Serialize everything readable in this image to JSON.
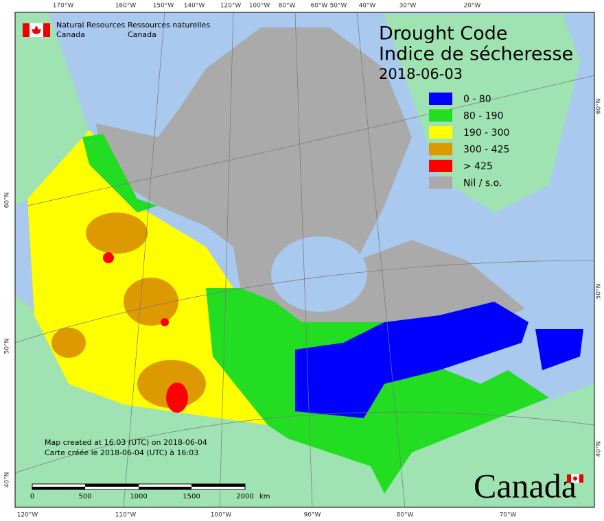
{
  "header": {
    "nrcan_en": [
      "Natural Resources",
      "Canada"
    ],
    "nrcan_fr": [
      "Ressources naturelles",
      "Canada"
    ]
  },
  "title": {
    "line1": "Drought Code",
    "line2": "Indice de sécheresse",
    "date": "2018-06-03"
  },
  "legend": [
    {
      "label": "0 - 80",
      "color": "#0000ff"
    },
    {
      "label": "80 - 190",
      "color": "#22dd22"
    },
    {
      "label": "190 - 300",
      "color": "#ffff00"
    },
    {
      "label": "300 - 425",
      "color": "#dd9900"
    },
    {
      "label": "> 425",
      "color": "#ff0000"
    },
    {
      "label": "Nil / s.o.",
      "color": "#aaaaaa"
    }
  ],
  "grid_labels": {
    "top": [
      "170°W",
      "160°W",
      "150°W",
      "140°W",
      "120°W",
      "100°W",
      "80°W",
      "60°W",
      "50°W",
      "40°W",
      "30°W",
      "20°W"
    ],
    "bottom": [
      "120°W",
      "110°W",
      "100°W",
      "90°W",
      "80°W",
      "70°W"
    ],
    "left": [
      "60°N",
      "50°N",
      "40°N"
    ],
    "right": [
      "60°N",
      "50°N",
      "40°N"
    ]
  },
  "notes": [
    "Map created at 16:03 (UTC) on 2018-06-04",
    "Carte créée le 2018-06-04 (UTC) à 16:03"
  ],
  "scale_bar": {
    "ticks": [
      "0",
      "500",
      "1000",
      "1500",
      "2000"
    ],
    "unit": "km"
  },
  "wordmark": "Canada"
}
